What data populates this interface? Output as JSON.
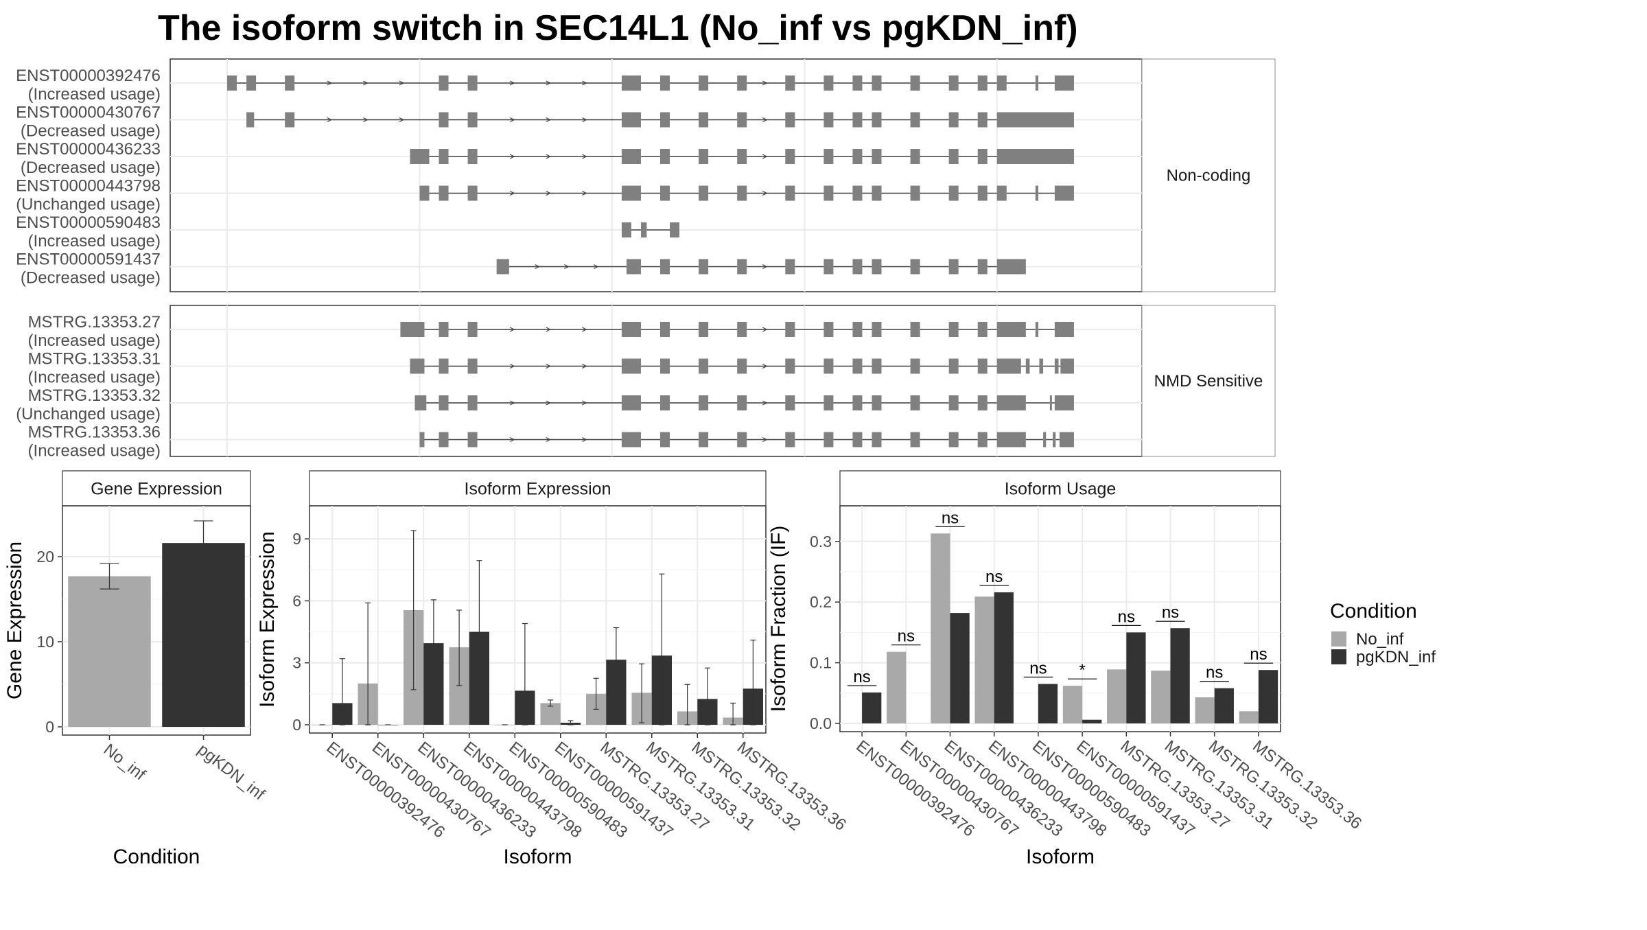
{
  "title": "The isoform switch in SEC14L1 (No_inf vs pgKDN_inf)",
  "colors": {
    "No_inf": "#a9a9a9",
    "pgKDN_inf": "#333333",
    "exon": "#808080",
    "intron": "#404040",
    "grid": "#ebebeb",
    "strip": "#ffffff"
  },
  "structure": {
    "groups": [
      {
        "label": "Non-coding",
        "isoforms": [
          {
            "name": "ENST00000392476",
            "status": "(Increased usage)",
            "arrows": true,
            "exons": [
              [
                0,
                1
              ],
              [
                2,
                3
              ],
              [
                6,
                7
              ],
              [
                22,
                23
              ],
              [
                25,
                26
              ],
              [
                41,
                43
              ],
              [
                45,
                46
              ],
              [
                49,
                50
              ],
              [
                53,
                54
              ],
              [
                58,
                59
              ],
              [
                62,
                63
              ],
              [
                65,
                66
              ],
              [
                67,
                68
              ],
              [
                71,
                72
              ],
              [
                75,
                76
              ],
              [
                78,
                79
              ],
              [
                80,
                81
              ],
              [
                84,
                84.3
              ],
              [
                86,
                88
              ]
            ]
          },
          {
            "name": "ENST00000430767",
            "status": "(Decreased usage)",
            "arrows": true,
            "exons": [
              [
                2,
                2.8
              ],
              [
                6,
                7
              ],
              [
                22,
                23
              ],
              [
                25,
                26
              ],
              [
                41,
                43
              ],
              [
                45,
                46
              ],
              [
                49,
                50
              ],
              [
                53,
                54
              ],
              [
                58,
                59
              ],
              [
                62,
                63
              ],
              [
                65,
                66
              ],
              [
                67,
                68
              ],
              [
                71,
                72
              ],
              [
                75,
                76
              ],
              [
                78,
                79
              ],
              [
                80,
                88
              ]
            ]
          },
          {
            "name": "ENST00000436233",
            "status": "(Decreased usage)",
            "arrows": true,
            "exons": [
              [
                19,
                21
              ],
              [
                22,
                23
              ],
              [
                25,
                26
              ],
              [
                41,
                43
              ],
              [
                45,
                46
              ],
              [
                49,
                50
              ],
              [
                53,
                54
              ],
              [
                58,
                59
              ],
              [
                62,
                63
              ],
              [
                65,
                66
              ],
              [
                67,
                68
              ],
              [
                71,
                72
              ],
              [
                75,
                76
              ],
              [
                78,
                79
              ],
              [
                80,
                88
              ]
            ]
          },
          {
            "name": "ENST00000443798",
            "status": "(Unchanged usage)",
            "arrows": true,
            "exons": [
              [
                20,
                21
              ],
              [
                22,
                23
              ],
              [
                25,
                26
              ],
              [
                41,
                43
              ],
              [
                45,
                46
              ],
              [
                49,
                50
              ],
              [
                53,
                54
              ],
              [
                58,
                59
              ],
              [
                62,
                63
              ],
              [
                65,
                66
              ],
              [
                67,
                68
              ],
              [
                71,
                72
              ],
              [
                75,
                76
              ],
              [
                78,
                79
              ],
              [
                80,
                81
              ],
              [
                84,
                84.3
              ],
              [
                86,
                88
              ]
            ]
          },
          {
            "name": "ENST00000590483",
            "status": "(Increased usage)",
            "arrows": false,
            "exons": [
              [
                41,
                42
              ],
              [
                43,
                43.6
              ],
              [
                46,
                47
              ]
            ]
          },
          {
            "name": "ENST00000591437",
            "status": "(Decreased usage)",
            "arrows": true,
            "exons": [
              [
                28,
                29.3
              ],
              [
                41.5,
                43
              ],
              [
                45,
                46
              ],
              [
                49,
                50
              ],
              [
                53,
                54
              ],
              [
                58,
                59
              ],
              [
                62,
                63
              ],
              [
                65,
                66
              ],
              [
                67,
                68
              ],
              [
                71,
                72
              ],
              [
                75,
                76
              ],
              [
                78,
                79
              ],
              [
                80,
                83
              ]
            ]
          }
        ]
      },
      {
        "label": "NMD Sensitive",
        "isoforms": [
          {
            "name": "MSTRG.13353.27",
            "status": "(Increased usage)",
            "arrows": true,
            "exons": [
              [
                18,
                20.5
              ],
              [
                22,
                23
              ],
              [
                25,
                26
              ],
              [
                41,
                43
              ],
              [
                45,
                46
              ],
              [
                49,
                50
              ],
              [
                53,
                54
              ],
              [
                58,
                59
              ],
              [
                62,
                63
              ],
              [
                65,
                66
              ],
              [
                67,
                68
              ],
              [
                71,
                72
              ],
              [
                75,
                76
              ],
              [
                78,
                79
              ],
              [
                80,
                83
              ],
              [
                84,
                84.3
              ],
              [
                86,
                88
              ]
            ]
          },
          {
            "name": "MSTRG.13353.31",
            "status": "(Increased usage)",
            "arrows": true,
            "exons": [
              [
                19,
                20.5
              ],
              [
                22,
                23
              ],
              [
                25,
                26
              ],
              [
                41,
                43
              ],
              [
                45,
                46
              ],
              [
                49,
                50
              ],
              [
                53,
                54
              ],
              [
                58,
                59
              ],
              [
                62,
                63
              ],
              [
                65,
                66
              ],
              [
                67,
                68
              ],
              [
                71,
                72
              ],
              [
                75,
                76
              ],
              [
                78,
                79
              ],
              [
                80,
                82.5
              ],
              [
                83,
                83.4
              ],
              [
                84.4,
                84.8
              ],
              [
                86,
                86.4
              ],
              [
                86.6,
                88
              ]
            ]
          },
          {
            "name": "MSTRG.13353.32",
            "status": "(Unchanged usage)",
            "arrows": true,
            "exons": [
              [
                19.5,
                20.7
              ],
              [
                22,
                23
              ],
              [
                25,
                26
              ],
              [
                41,
                43
              ],
              [
                45,
                46
              ],
              [
                49,
                50
              ],
              [
                53,
                54
              ],
              [
                58,
                59
              ],
              [
                62,
                63
              ],
              [
                65,
                66
              ],
              [
                67,
                68
              ],
              [
                71,
                72
              ],
              [
                75,
                76
              ],
              [
                78,
                79
              ],
              [
                80,
                83
              ],
              [
                85.5,
                85.7
              ],
              [
                86,
                88
              ]
            ]
          },
          {
            "name": "MSTRG.13353.36",
            "status": "(Increased usage)",
            "arrows": true,
            "exons": [
              [
                20,
                20.5
              ],
              [
                22,
                23
              ],
              [
                25,
                26
              ],
              [
                41,
                43
              ],
              [
                45,
                46
              ],
              [
                49,
                50
              ],
              [
                53,
                54
              ],
              [
                58,
                59
              ],
              [
                62,
                63
              ],
              [
                65,
                66
              ],
              [
                67,
                68
              ],
              [
                71,
                72
              ],
              [
                75,
                76
              ],
              [
                78,
                79
              ],
              [
                80,
                83
              ],
              [
                84.8,
                85.1
              ],
              [
                85.8,
                86.1
              ],
              [
                86.5,
                88
              ]
            ]
          }
        ]
      }
    ]
  },
  "chart_data": [
    {
      "type": "bar",
      "strip": "Gene Expression",
      "xlabel": "Condition",
      "ylabel": "Gene Expression",
      "ylim": [
        0,
        25
      ],
      "yticks": [
        0,
        10,
        20
      ],
      "categories": [
        "No_inf",
        "pgKDN_inf"
      ],
      "values": [
        17.7,
        21.6
      ],
      "errors": [
        [
          16.2,
          19.2
        ],
        [
          19.0,
          24.2
        ]
      ],
      "grid": true
    },
    {
      "type": "bar",
      "strip": "Isoform Expression",
      "xlabel": "Isoform",
      "ylabel": "Isoform Expression",
      "ylim": [
        0,
        10.2
      ],
      "yticks": [
        0,
        3,
        6,
        9
      ],
      "categories": [
        "ENST00000392476",
        "ENST00000430767",
        "ENST00000436233",
        "ENST00000443798",
        "ENST00000590483",
        "ENST00000591437",
        "MSTRG.13353.27",
        "MSTRG.13353.31",
        "MSTRG.13353.32",
        "MSTRG.13353.36"
      ],
      "series": [
        {
          "name": "No_inf",
          "values": [
            0,
            2.0,
            5.55,
            3.75,
            0,
            1.05,
            1.5,
            1.55,
            0.65,
            0.35
          ],
          "errors": [
            [
              0,
              0
            ],
            [
              0,
              5.9
            ],
            [
              1.7,
              9.4
            ],
            [
              1.9,
              5.55
            ],
            [
              0,
              0
            ],
            [
              0.9,
              1.2
            ],
            [
              0.75,
              2.25
            ],
            [
              0.1,
              2.95
            ],
            [
              0,
              1.95
            ],
            [
              0,
              1.05
            ]
          ]
        },
        {
          "name": "pgKDN_inf",
          "values": [
            1.05,
            0,
            3.95,
            4.5,
            1.65,
            0.1,
            3.15,
            3.35,
            1.25,
            1.75
          ],
          "errors": [
            [
              0,
              3.2
            ],
            [
              0,
              0
            ],
            [
              1.9,
              6.05
            ],
            [
              1.0,
              7.95
            ],
            [
              0,
              4.9
            ],
            [
              0,
              0.2
            ],
            [
              1.6,
              4.7
            ],
            [
              0,
              7.3
            ],
            [
              0,
              2.75
            ],
            [
              0,
              4.1
            ]
          ]
        }
      ],
      "grid": true
    },
    {
      "type": "bar",
      "strip": "Isoform Usage",
      "xlabel": "Isoform",
      "ylabel": "Isoform Fraction (IF)",
      "ylim": [
        0,
        0.345
      ],
      "yticks": [
        0.0,
        0.1,
        0.2,
        0.3
      ],
      "ytick_labels": [
        "0.0",
        "0.1",
        "0.2",
        "0.3"
      ],
      "categories": [
        "ENST00000392476",
        "ENST00000430767",
        "ENST00000436233",
        "ENST00000443798",
        "ENST00000590483",
        "ENST00000591437",
        "MSTRG.13353.27",
        "MSTRG.13353.31",
        "MSTRG.13353.32",
        "MSTRG.13353.36"
      ],
      "series": [
        {
          "name": "No_inf",
          "values": [
            0,
            0.118,
            0.313,
            0.209,
            0,
            0.062,
            0.089,
            0.087,
            0.043,
            0.02
          ]
        },
        {
          "name": "pgKDN_inf",
          "values": [
            0.051,
            0,
            0.182,
            0.216,
            0.065,
            0.006,
            0.15,
            0.157,
            0.058,
            0.088
          ]
        }
      ],
      "significance": [
        "ns",
        "ns",
        "ns",
        "ns",
        "ns",
        "*",
        "ns",
        "ns",
        "ns",
        "ns"
      ],
      "grid": true
    }
  ],
  "legend": {
    "title": "Condition",
    "entries": [
      "No_inf",
      "pgKDN_inf"
    ],
    "position": "right"
  }
}
